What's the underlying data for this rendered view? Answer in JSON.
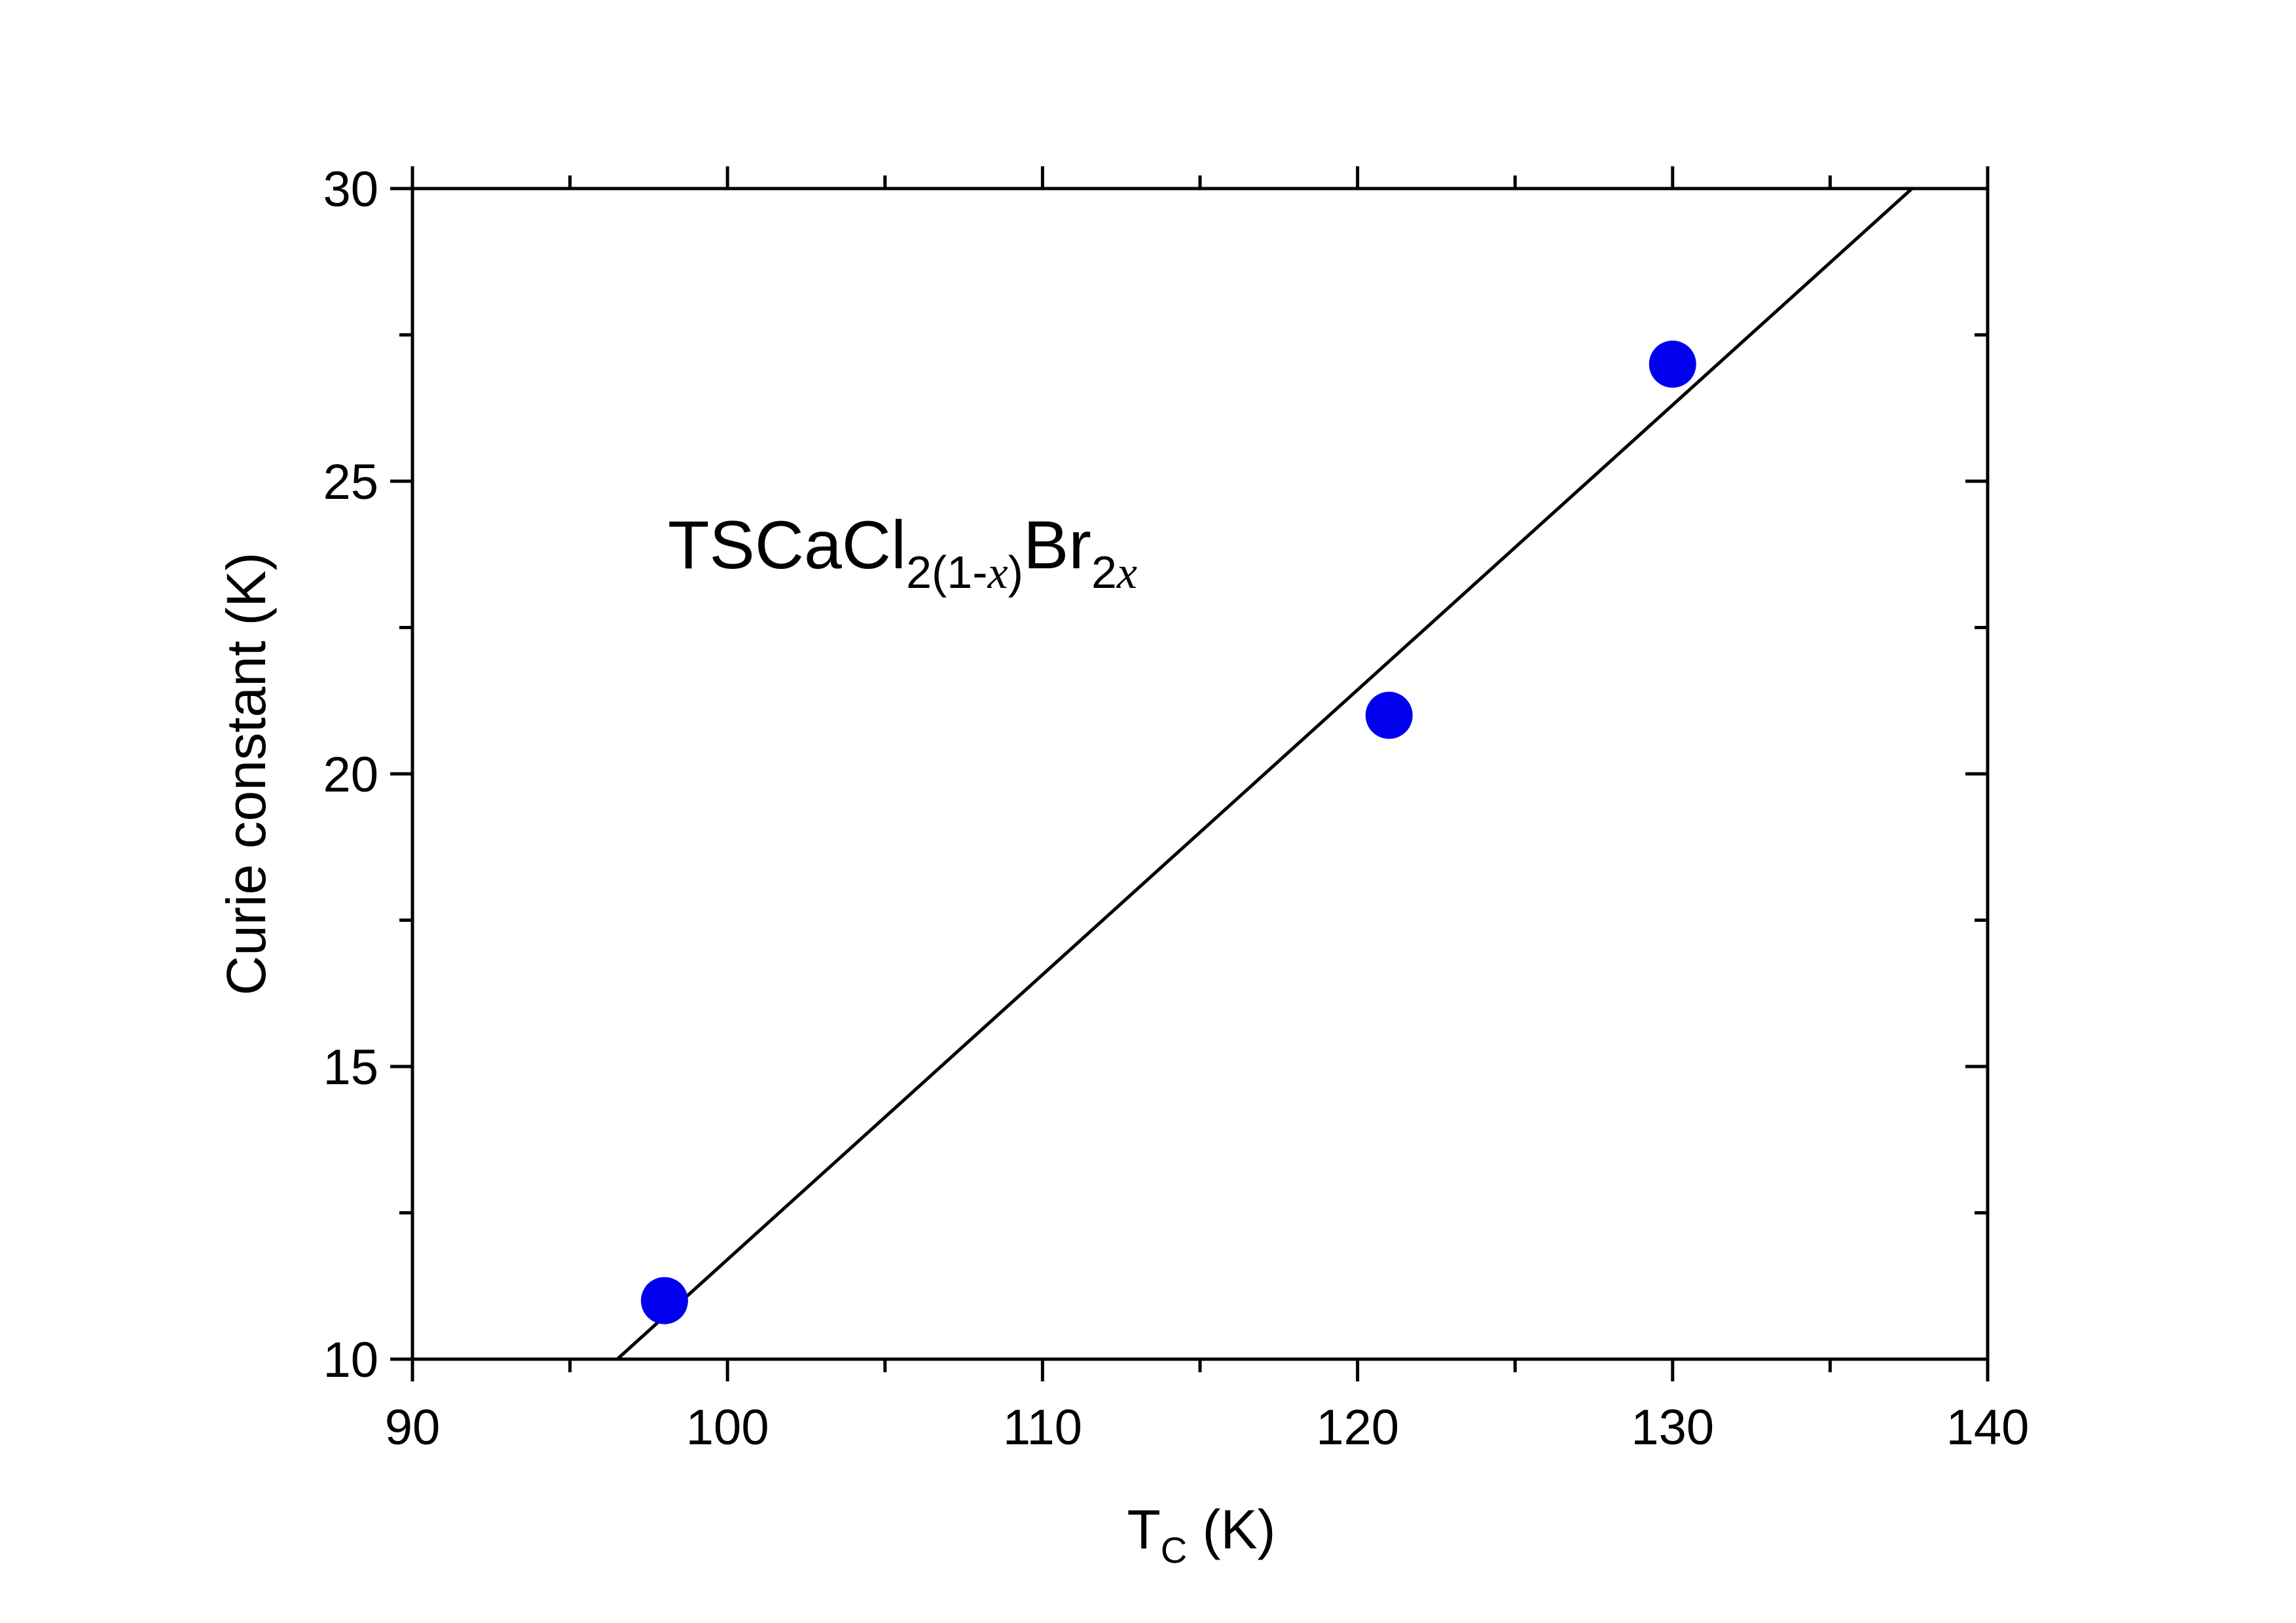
{
  "chart_data": {
    "type": "scatter",
    "title": "",
    "xlabel": {
      "main": "T",
      "sub": "C",
      "rest": " (K)"
    },
    "ylabel": "Curie constant (K)",
    "xlim": [
      90,
      140
    ],
    "ylim": [
      10,
      30
    ],
    "x_ticks": [
      "90",
      "100",
      "110",
      "120",
      "130",
      "140"
    ],
    "y_ticks": [
      "10",
      "15",
      "20",
      "25",
      "30"
    ],
    "grid": false,
    "series": [
      {
        "kind": "points",
        "color": "#0000ee",
        "x": [
          98,
          121,
          130
        ],
        "y": [
          11,
          21,
          27
        ]
      },
      {
        "kind": "fit-line",
        "color": "#000000",
        "x": [
          96.5,
          137.6
        ],
        "y": [
          10,
          30
        ]
      }
    ],
    "annotation": {
      "parts": [
        {
          "text": "TSCaCl",
          "style": "normal"
        },
        {
          "text": "2(1-",
          "style": "sub"
        },
        {
          "text": "x",
          "style": "sub-italic"
        },
        {
          "text": ")",
          "style": "sub"
        },
        {
          "text": "Br",
          "style": "normal"
        },
        {
          "text": "2",
          "style": "sub"
        },
        {
          "text": "x",
          "style": "sub-italic"
        }
      ]
    }
  }
}
